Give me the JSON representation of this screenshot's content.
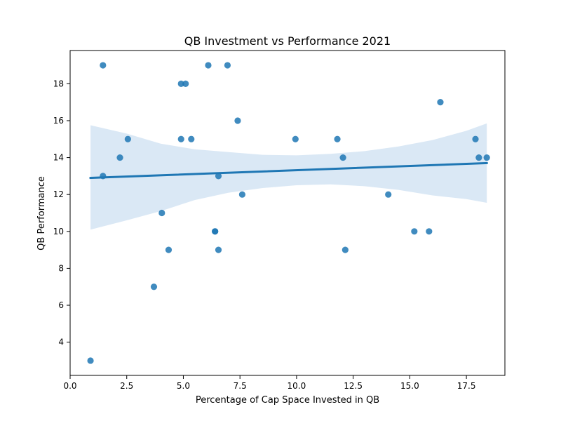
{
  "chart_data": {
    "type": "scatter",
    "title": "QB Investment vs Performance 2021",
    "xlabel": "Percentage of Cap Space Invested in QB",
    "ylabel": "QB Performance",
    "xlim": [
      0,
      19.2
    ],
    "ylim": [
      2.2,
      19.8
    ],
    "xticks": [
      0.0,
      2.5,
      5.0,
      7.5,
      10.0,
      12.5,
      15.0,
      17.5
    ],
    "xtick_labels": [
      "0.0",
      "2.5",
      "5.0",
      "7.5",
      "10.0",
      "12.5",
      "15.0",
      "17.5"
    ],
    "yticks": [
      4,
      6,
      8,
      10,
      12,
      14,
      16,
      18
    ],
    "ytick_labels": [
      "4",
      "6",
      "8",
      "10",
      "12",
      "14",
      "16",
      "18"
    ],
    "grid": false,
    "colors": {
      "points": "#1f77b4",
      "regression_line": "#1f77b4",
      "confidence_band": "#c6dbef"
    },
    "points": [
      {
        "x": 0.9,
        "y": 3
      },
      {
        "x": 1.45,
        "y": 19
      },
      {
        "x": 1.45,
        "y": 13
      },
      {
        "x": 2.2,
        "y": 14
      },
      {
        "x": 2.55,
        "y": 15
      },
      {
        "x": 3.7,
        "y": 7
      },
      {
        "x": 4.05,
        "y": 11
      },
      {
        "x": 4.35,
        "y": 9
      },
      {
        "x": 4.9,
        "y": 18
      },
      {
        "x": 4.9,
        "y": 15
      },
      {
        "x": 5.1,
        "y": 18
      },
      {
        "x": 5.35,
        "y": 15
      },
      {
        "x": 6.1,
        "y": 19
      },
      {
        "x": 6.4,
        "y": 10
      },
      {
        "x": 6.4,
        "y": 10
      },
      {
        "x": 6.55,
        "y": 13
      },
      {
        "x": 6.55,
        "y": 9
      },
      {
        "x": 6.95,
        "y": 19
      },
      {
        "x": 7.4,
        "y": 16
      },
      {
        "x": 7.6,
        "y": 12
      },
      {
        "x": 9.95,
        "y": 15
      },
      {
        "x": 11.8,
        "y": 15
      },
      {
        "x": 12.05,
        "y": 14
      },
      {
        "x": 12.15,
        "y": 9
      },
      {
        "x": 14.05,
        "y": 12
      },
      {
        "x": 15.2,
        "y": 10
      },
      {
        "x": 15.85,
        "y": 10
      },
      {
        "x": 16.35,
        "y": 17
      },
      {
        "x": 17.9,
        "y": 15
      },
      {
        "x": 18.05,
        "y": 14
      },
      {
        "x": 18.4,
        "y": 14
      }
    ],
    "regression_line": [
      {
        "x": 0.9,
        "y": 12.9
      },
      {
        "x": 18.4,
        "y": 13.7
      }
    ],
    "confidence_band": {
      "x": [
        0.9,
        2.5,
        4.0,
        5.5,
        7.0,
        8.5,
        10.0,
        11.5,
        13.0,
        14.5,
        16.0,
        17.5,
        18.4
      ],
      "upper": [
        15.75,
        15.3,
        14.75,
        14.45,
        14.3,
        14.15,
        14.12,
        14.2,
        14.35,
        14.6,
        14.95,
        15.45,
        15.85
      ],
      "lower": [
        10.1,
        10.6,
        11.1,
        11.7,
        12.1,
        12.35,
        12.5,
        12.55,
        12.45,
        12.25,
        11.95,
        11.75,
        11.55
      ]
    }
  }
}
